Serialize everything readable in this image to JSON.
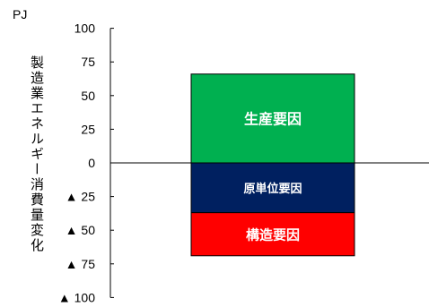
{
  "chart_data": {
    "type": "bar",
    "stacked": true,
    "unit_label": "PJ",
    "ylabel": "製造業エネルギー消費量変化",
    "ylim": [
      -100,
      100
    ],
    "ticks": [
      {
        "value": 100,
        "label": "100"
      },
      {
        "value": 75,
        "label": "75"
      },
      {
        "value": 50,
        "label": "50"
      },
      {
        "value": 25,
        "label": "25"
      },
      {
        "value": 0,
        "label": "0"
      },
      {
        "value": -25,
        "label": "▲ 25"
      },
      {
        "value": -50,
        "label": "▲ 50"
      },
      {
        "value": -75,
        "label": "▲ 75"
      },
      {
        "value": -100,
        "label": "▲ 100"
      }
    ],
    "segments": [
      {
        "name": "生産要因",
        "value": 66,
        "color": "#00b050",
        "text_color": "#ffffff"
      },
      {
        "name": "原単位要因",
        "value": -37,
        "color": "#002060",
        "text_color": "#ffffff"
      },
      {
        "name": "構造要因",
        "value": -32,
        "color": "#ff0000",
        "text_color": "#ffffff"
      }
    ],
    "grid": false
  }
}
